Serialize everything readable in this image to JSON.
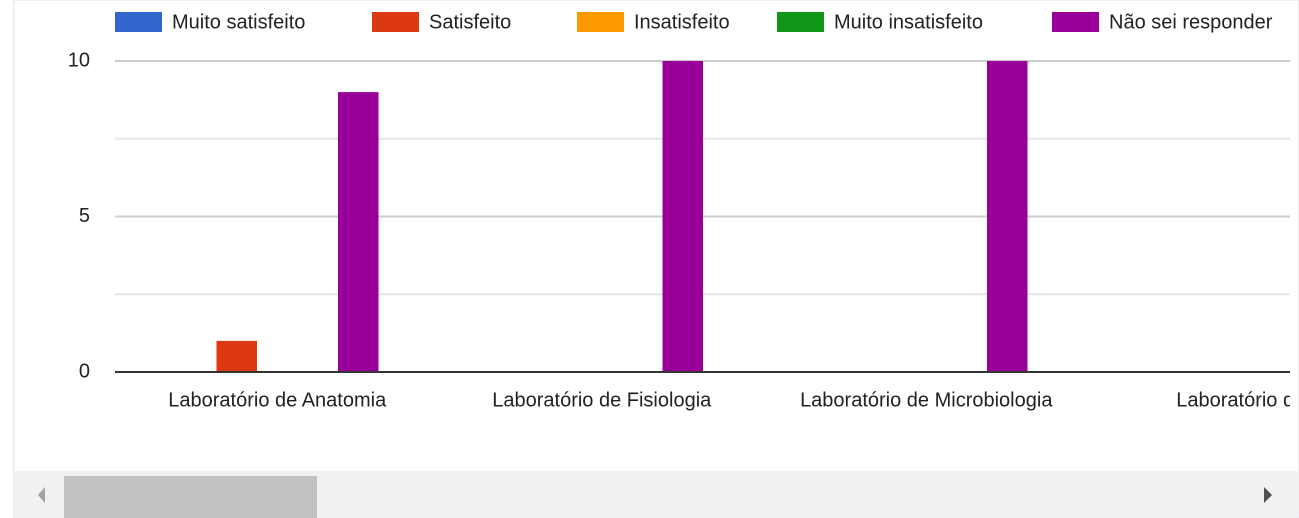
{
  "chart_data": {
    "type": "bar",
    "categories": [
      "Laboratório de Anatomia",
      "Laboratório de Fisiologia",
      "Laboratório de Microbiologia",
      "Laboratório de H"
    ],
    "series": [
      {
        "name": "Muito satisfeito",
        "color": "#3366cc",
        "values": [
          0,
          0,
          0,
          0
        ]
      },
      {
        "name": "Satisfeito",
        "color": "#dc3912",
        "values": [
          1,
          0,
          0,
          0
        ]
      },
      {
        "name": "Insatisfeito",
        "color": "#ff9900",
        "values": [
          0,
          0,
          0,
          0
        ]
      },
      {
        "name": "Muito insatisfeito",
        "color": "#109618",
        "values": [
          0,
          0,
          0,
          null
        ]
      },
      {
        "name": "Não sei responder",
        "color": "#990099",
        "values": [
          9,
          10,
          10,
          null
        ]
      }
    ],
    "ylim": [
      0,
      10
    ],
    "yticks": [
      0,
      5,
      10
    ],
    "minor_yticks": [
      2.5,
      7.5
    ],
    "grid": true,
    "legend": "top"
  }
}
